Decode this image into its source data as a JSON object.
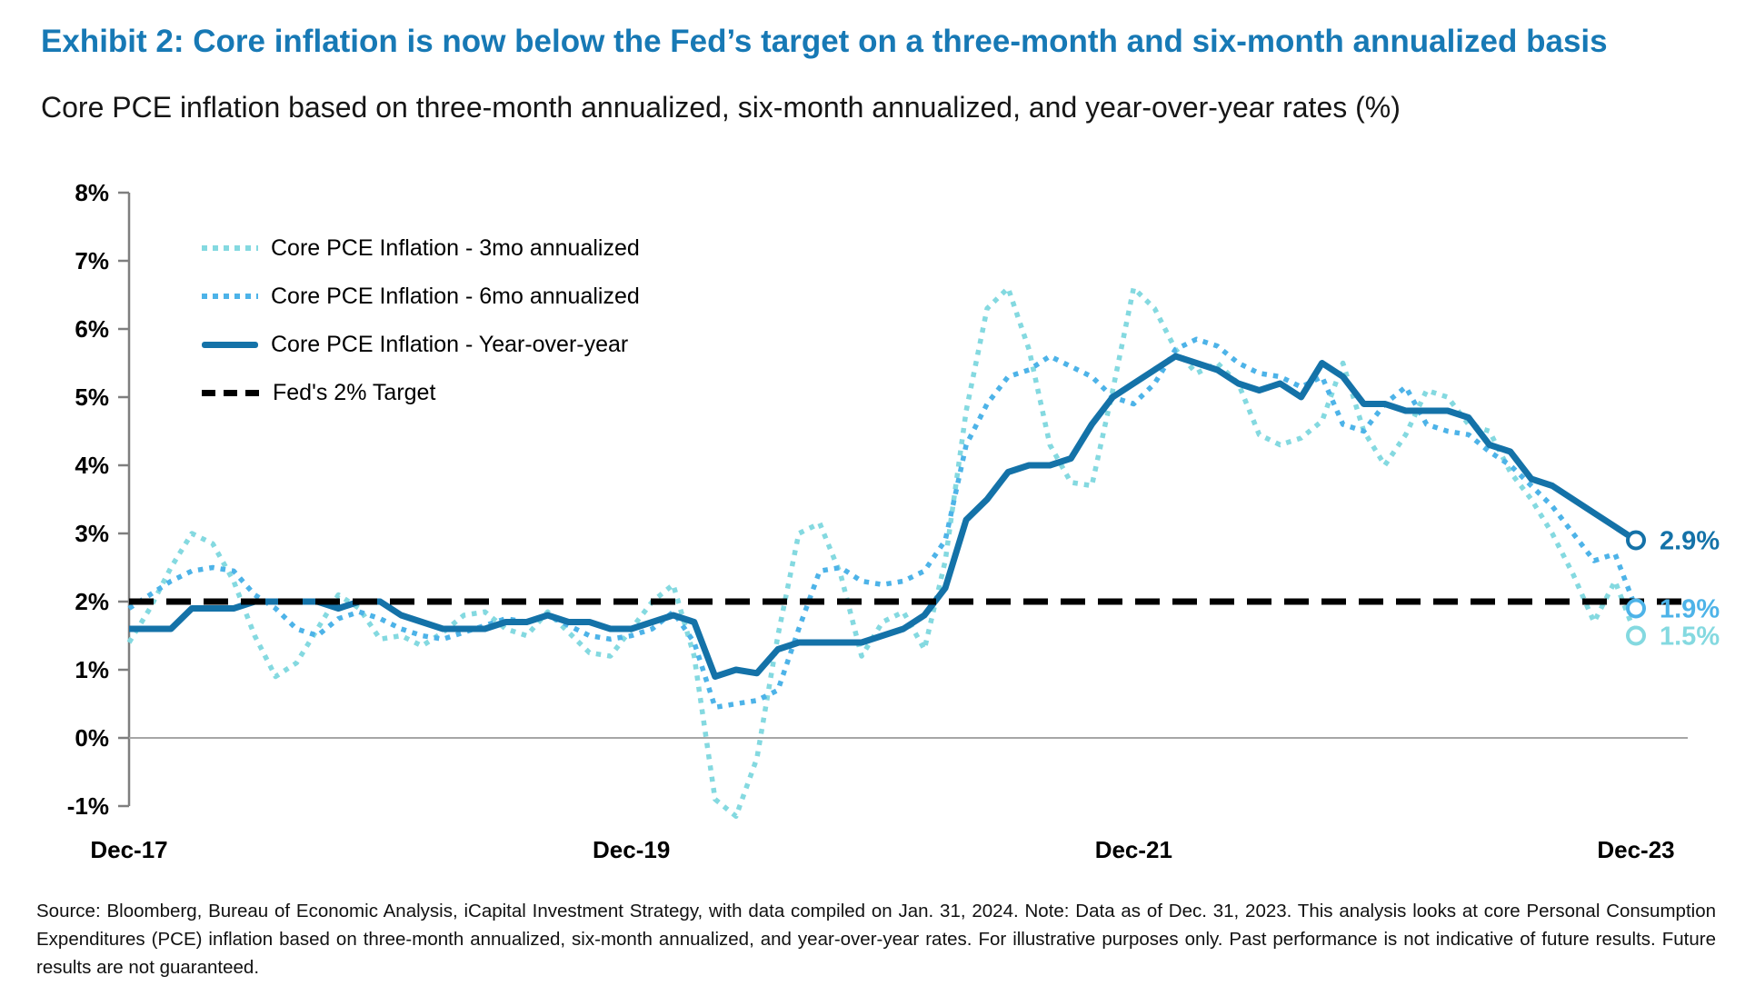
{
  "header": {
    "title": "Exhibit 2: Core inflation is now below the Fed’s target on a three-month and six-month annualized basis",
    "subtitle": "Core PCE inflation based on three-month annualized, six-month annualized, and year-over-year rates (%)"
  },
  "colors": {
    "title_blue": "#1779B5",
    "series_3mo": "#84D9E0",
    "series_6mo": "#4DB3E8",
    "series_yoy": "#1472A8",
    "target_black": "#000000",
    "axis_gray": "#7f7f7f",
    "zero_line_gray": "#a6a6a6"
  },
  "chart_data": {
    "type": "line",
    "title": "Core PCE inflation based on three-month annualized, six-month annualized, and year-over-year rates (%)",
    "xlabel": "",
    "ylabel": "",
    "ylim": [
      -1,
      8
    ],
    "grid": "zero-line-only",
    "legend_position": "inside-top-left",
    "x_start": "Dec-17",
    "x_end": "Dec-23",
    "x_frequency": "monthly",
    "x_tick_labels": [
      "Dec-17",
      "Dec-19",
      "Dec-21",
      "Dec-23"
    ],
    "x_tick_month_index": [
      0,
      24,
      48,
      72
    ],
    "y_tick_labels": [
      "8%",
      "7%",
      "6%",
      "5%",
      "4%",
      "3%",
      "2%",
      "1%",
      "0%",
      "-1%"
    ],
    "y_tick_values": [
      8,
      7,
      6,
      5,
      4,
      3,
      2,
      1,
      0,
      -1
    ],
    "target_line": {
      "label": "Fed's 2% Target",
      "value": 2,
      "color": "#000000",
      "style": "dashed"
    },
    "series": [
      {
        "name": "Core PCE Inflation - 3mo annualized",
        "style": "dotted",
        "color": "#84D9E0",
        "end_label": "1.5%",
        "end_value": 1.5,
        "values": [
          1.4,
          1.9,
          2.5,
          3.0,
          2.85,
          2.3,
          1.5,
          0.9,
          1.1,
          1.6,
          2.1,
          1.9,
          1.45,
          1.5,
          1.35,
          1.55,
          1.8,
          1.85,
          1.6,
          1.5,
          1.85,
          1.55,
          1.25,
          1.2,
          1.6,
          2.0,
          2.25,
          1.2,
          -0.9,
          -1.15,
          -0.3,
          1.5,
          3.0,
          3.15,
          2.4,
          1.2,
          1.7,
          1.85,
          1.3,
          2.6,
          4.8,
          6.3,
          6.6,
          5.7,
          4.3,
          3.75,
          3.7,
          5.1,
          6.6,
          6.3,
          5.7,
          5.35,
          5.5,
          5.2,
          4.45,
          4.3,
          4.4,
          4.65,
          5.5,
          4.5,
          4.0,
          4.45,
          5.1,
          5.0,
          4.6,
          4.5,
          3.9,
          3.5,
          3.0,
          2.4,
          1.7,
          2.3,
          1.5
        ]
      },
      {
        "name": "Core PCE Inflation - 6mo annualized",
        "style": "dotted",
        "color": "#4DB3E8",
        "end_label": "1.9%",
        "end_value": 1.9,
        "values": [
          1.9,
          2.1,
          2.3,
          2.45,
          2.5,
          2.45,
          2.1,
          1.9,
          1.6,
          1.5,
          1.75,
          1.85,
          1.75,
          1.6,
          1.5,
          1.45,
          1.55,
          1.65,
          1.75,
          1.7,
          1.8,
          1.65,
          1.5,
          1.45,
          1.5,
          1.6,
          1.85,
          1.4,
          0.45,
          0.5,
          0.55,
          0.7,
          1.6,
          2.45,
          2.5,
          2.3,
          2.25,
          2.3,
          2.45,
          2.9,
          4.3,
          4.9,
          5.3,
          5.4,
          5.6,
          5.45,
          5.3,
          5.0,
          4.9,
          5.2,
          5.7,
          5.85,
          5.75,
          5.5,
          5.35,
          5.3,
          5.15,
          5.3,
          4.6,
          4.5,
          4.9,
          5.15,
          4.6,
          4.5,
          4.45,
          4.2,
          4.0,
          3.7,
          3.4,
          3.0,
          2.6,
          2.7,
          1.9
        ]
      },
      {
        "name": "Core PCE Inflation - Year-over-year",
        "style": "solid",
        "color": "#1472A8",
        "end_label": "2.9%",
        "end_value": 2.9,
        "values": [
          1.6,
          1.6,
          1.6,
          1.9,
          1.9,
          1.9,
          2.0,
          2.0,
          2.0,
          2.0,
          1.9,
          2.0,
          2.0,
          1.8,
          1.7,
          1.6,
          1.6,
          1.6,
          1.7,
          1.7,
          1.8,
          1.7,
          1.7,
          1.6,
          1.6,
          1.7,
          1.8,
          1.7,
          0.9,
          1.0,
          0.95,
          1.3,
          1.4,
          1.4,
          1.4,
          1.4,
          1.5,
          1.6,
          1.8,
          2.2,
          3.2,
          3.5,
          3.9,
          4.0,
          4.0,
          4.1,
          4.6,
          5.0,
          5.2,
          5.4,
          5.6,
          5.5,
          5.4,
          5.2,
          5.1,
          5.2,
          5.0,
          5.5,
          5.3,
          4.9,
          4.9,
          4.8,
          4.8,
          4.8,
          4.7,
          4.3,
          4.2,
          3.8,
          3.7,
          3.5,
          3.3,
          3.1,
          2.9
        ]
      }
    ]
  },
  "footer": {
    "source_note": "Source: Bloomberg, Bureau of Economic Analysis, iCapital Investment Strategy, with data compiled on Jan. 31, 2024. Note: Data as of Dec. 31, 2023. This analysis looks at core Personal Consumption Expenditures (PCE) inflation based on three-month annualized, six-month annualized, and year-over-year rates. For illustrative purposes only. Past performance is not indicative of future results. Future results are not guaranteed."
  }
}
